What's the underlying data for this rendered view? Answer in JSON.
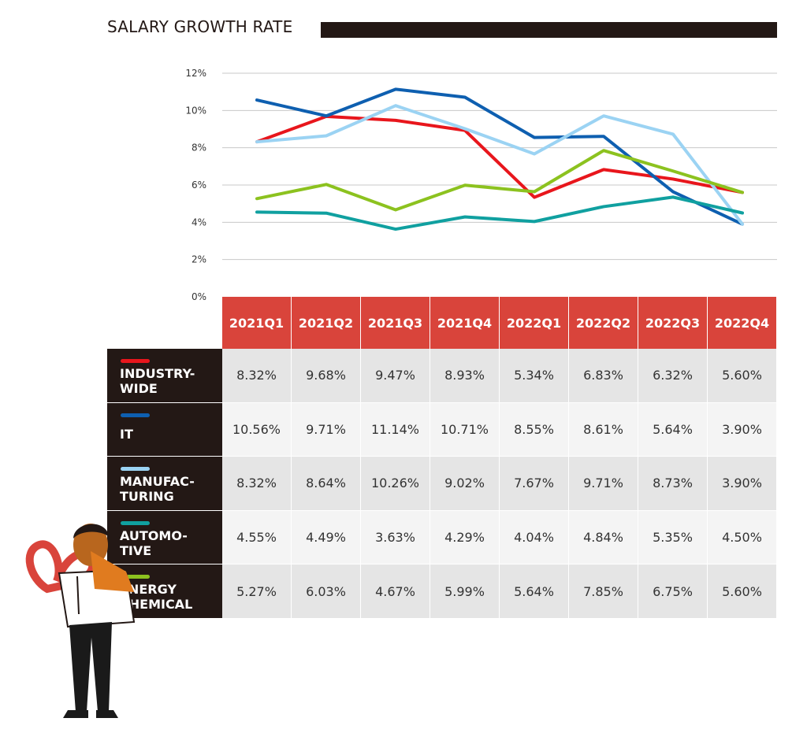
{
  "chart_data": {
    "type": "line",
    "title": "SALARY GROWTH RATE",
    "categories": [
      "2021Q1",
      "2021Q2",
      "2021Q3",
      "2021Q4",
      "2022Q1",
      "2022Q2",
      "2022Q3",
      "2022Q4"
    ],
    "ylim": [
      0,
      12
    ],
    "yticks": [
      "0%",
      "2%",
      "4%",
      "6%",
      "8%",
      "10%",
      "12%"
    ],
    "grid": true,
    "series": [
      {
        "name": "INDUSTRY-WIDE",
        "color": "#e8161c",
        "values": [
          8.32,
          9.68,
          9.47,
          8.93,
          5.34,
          6.83,
          6.32,
          5.6
        ],
        "labels": [
          "8.32%",
          "9.68%",
          "9.47%",
          "8.93%",
          "5.34%",
          "6.83%",
          "6.32%",
          "5.60%"
        ]
      },
      {
        "name": "IT",
        "color": "#0e5fb0",
        "values": [
          10.56,
          9.71,
          11.14,
          10.71,
          8.55,
          8.61,
          5.64,
          3.9
        ],
        "labels": [
          "10.56%",
          "9.71%",
          "11.14%",
          "10.71%",
          "8.55%",
          "8.61%",
          "5.64%",
          "3.90%"
        ]
      },
      {
        "name": "MANUFAC-TURING",
        "color": "#9bd3f3",
        "values": [
          8.32,
          8.64,
          10.26,
          9.02,
          7.67,
          9.71,
          8.73,
          3.9
        ],
        "labels": [
          "8.32%",
          "8.64%",
          "10.26%",
          "9.02%",
          "7.67%",
          "9.71%",
          "8.73%",
          "3.90%"
        ]
      },
      {
        "name": "AUTOMO-TIVE",
        "color": "#10a0a0",
        "values": [
          4.55,
          4.49,
          3.63,
          4.29,
          4.04,
          4.84,
          5.35,
          4.5
        ],
        "labels": [
          "4.55%",
          "4.49%",
          "3.63%",
          "4.29%",
          "4.04%",
          "4.84%",
          "5.35%",
          "4.50%"
        ]
      },
      {
        "name": "ENERGY CHEMICAL",
        "color": "#8cc21f",
        "values": [
          5.27,
          6.03,
          4.67,
          5.99,
          5.64,
          7.85,
          6.75,
          5.6
        ],
        "labels": [
          "5.27%",
          "6.03%",
          "4.67%",
          "5.99%",
          "5.64%",
          "7.85%",
          "6.75%",
          "5.60%"
        ]
      }
    ]
  },
  "row_labels": [
    [
      "INDUSTRY-",
      "WIDE"
    ],
    [
      "IT"
    ],
    [
      "MANUFAC-",
      "TURING"
    ],
    [
      "AUTOMO-",
      "TIVE"
    ],
    [
      "ENERGY",
      "CHEMICAL"
    ]
  ]
}
